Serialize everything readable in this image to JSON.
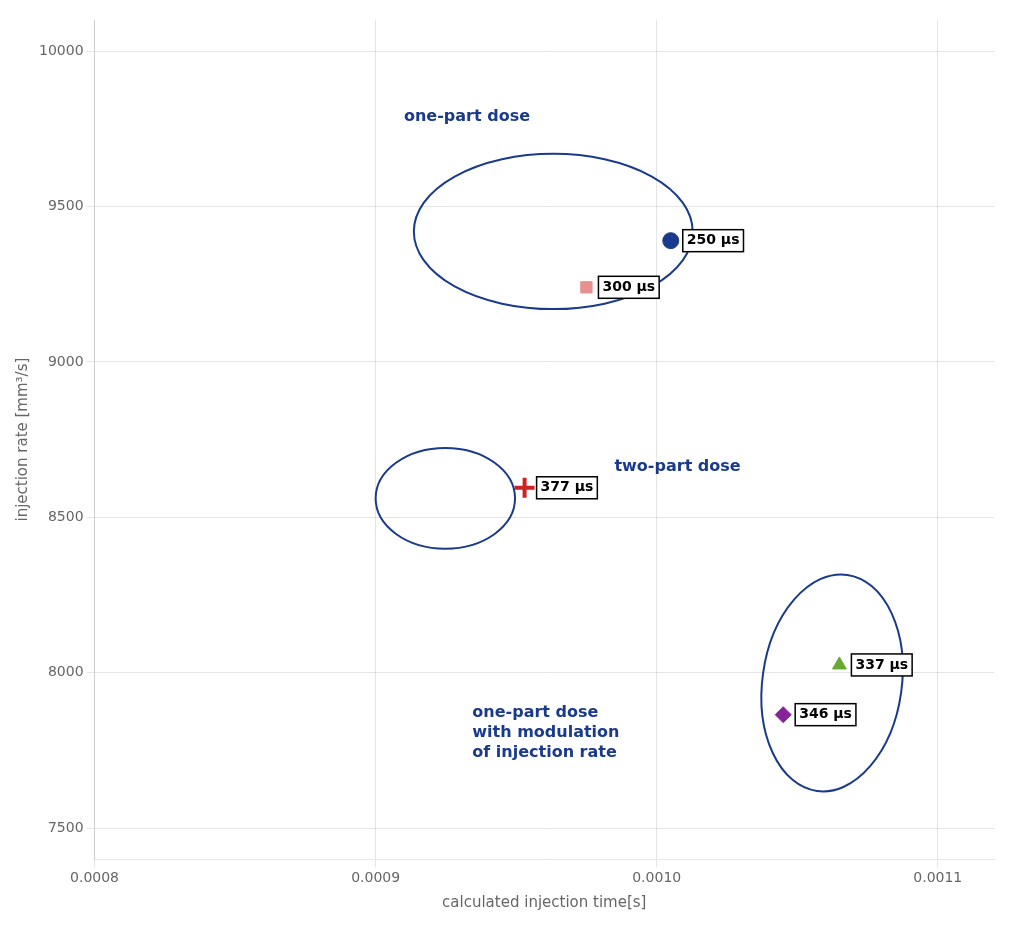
{
  "chart_data": {
    "type": "scatter",
    "xlabel": "calculated injection time[s]",
    "ylabel": "injection rate [mm³/s]",
    "xlim": [
      0.0008,
      0.00112
    ],
    "ylim": [
      7400,
      10100
    ],
    "xticks": [
      0.0008,
      0.0009,
      {
        "value": 0.001,
        "label": "0.0010"
      },
      0.0011
    ],
    "yticks": [
      7500,
      8000,
      8500,
      9000,
      9500,
      10000
    ],
    "grid": true,
    "series": [
      {
        "name": "250 μs",
        "color": "#1a3a8c",
        "marker": "circle",
        "x": [
          0.001005
        ],
        "values": [
          9390
        ]
      },
      {
        "name": "300 μs",
        "color": "#e89090",
        "marker": "square",
        "x": [
          0.000975
        ],
        "values": [
          9240
        ]
      },
      {
        "name": "377 μs",
        "color": "#cc2222",
        "marker": "plus",
        "x": [
          0.000953
        ],
        "values": [
          8595
        ]
      },
      {
        "name": "337 μs",
        "color": "#66aa33",
        "marker": "triangle",
        "x": [
          0.001065
        ],
        "values": [
          8025
        ]
      },
      {
        "name": "346 μs",
        "color": "#882299",
        "marker": "diamond",
        "x": [
          0.001045
        ],
        "values": [
          7865
        ]
      }
    ],
    "annotations": [
      {
        "text": "one-part dose",
        "color": "#1a3a8c"
      },
      {
        "text": "two-part dose",
        "color": "#1a3a8c"
      },
      {
        "text": "one-part dose\nwith modulation\nof injection rate",
        "color": "#1a3a8c"
      }
    ]
  }
}
